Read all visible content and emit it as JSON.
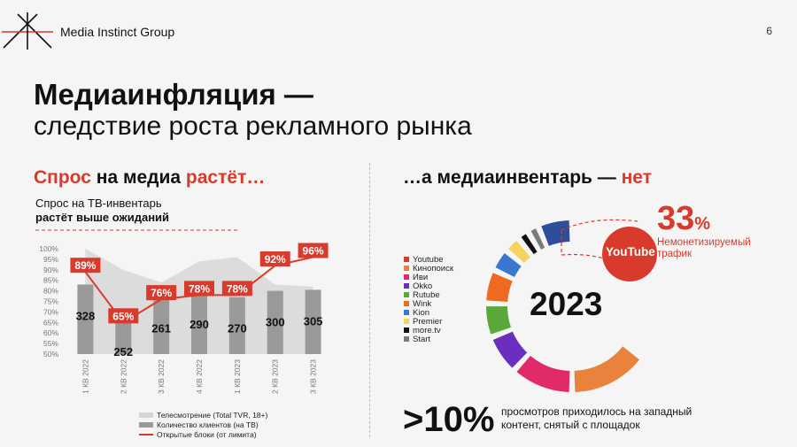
{
  "header": {
    "company": "Media Instinct Group",
    "page_number": "6"
  },
  "title": {
    "line1": "Медиаинфляция —",
    "line2": "следствие роста рекламного рынка"
  },
  "left": {
    "heading_a": "Спрос",
    "heading_b": " на медиа ",
    "heading_c": "растёт…",
    "subtitle1": "Спрос на ТВ-инвентарь",
    "subtitle2": "растёт выше ожиданий"
  },
  "right": {
    "heading_a": "…а медиаинвентарь — ",
    "heading_b": "нет",
    "year": "2023",
    "youtube_logo": "YouTube",
    "pct_value": "33",
    "pct_sign": "%",
    "pct_note": "Немонетизируемый трафик",
    "bottom_value": ">10%",
    "bottom_note": "просмотров приходилось на западный контент, снятый с площадок"
  },
  "colors": {
    "accent": "#d83a2c"
  },
  "chart_data": [
    {
      "type": "bar",
      "categories": [
        "1 КВ 2022",
        "2 КВ 2022",
        "3 КВ 2022",
        "4 КВ 2022",
        "1 КВ 2023",
        "2 КВ 2023",
        "3 КВ 2023"
      ],
      "y_ticks": [
        "100%",
        "95%",
        "90%",
        "85%",
        "80%",
        "75%",
        "70%",
        "65%",
        "60%",
        "55%",
        "50%"
      ],
      "ylim": [
        50,
        100
      ],
      "series": [
        {
          "name": "Телесмотрение (Total TVR, 18+)",
          "type": "area",
          "values": [
            100,
            90,
            84,
            94,
            96,
            83,
            82
          ]
        },
        {
          "name": "Количество клиентов (на ТВ)",
          "type": "bar",
          "values": [
            328,
            252,
            261,
            290,
            270,
            300,
            305
          ],
          "bar_height_pct": [
            83,
            66,
            77,
            79,
            77,
            80,
            80.5
          ]
        },
        {
          "name": "Открытые блоки (от лимита)",
          "type": "line",
          "values": [
            89,
            65,
            76,
            78,
            78,
            92,
            96
          ],
          "labels": [
            "89%",
            "65%",
            "76%",
            "78%",
            "78%",
            "92%",
            "96%"
          ]
        }
      ]
    },
    {
      "type": "pie",
      "title": "2023",
      "legend": [
        {
          "label": "Youtube",
          "color": "#d83a2c"
        },
        {
          "label": "Кинопоиск",
          "color": "#e8823d"
        },
        {
          "label": "Иви",
          "color": "#e02a6a"
        },
        {
          "label": "Okko",
          "color": "#6a2fbf"
        },
        {
          "label": "Rutube",
          "color": "#5aa83a"
        },
        {
          "label": "Wink",
          "color": "#ef6a20"
        },
        {
          "label": "Kion",
          "color": "#3a78d0"
        },
        {
          "label": "Premier",
          "color": "#f4d35e"
        },
        {
          "label": "more.tv",
          "color": "#111111"
        },
        {
          "label": "Start",
          "color": "#7a7a7a"
        }
      ],
      "values": [
        33,
        14,
        11,
        7,
        6,
        6,
        4,
        3,
        2,
        2,
        6
      ],
      "slice_colors": [
        "#d83a2c",
        "#e8823d",
        "#e02a6a",
        "#6a2fbf",
        "#5aa83a",
        "#ef6a20",
        "#3a78d0",
        "#f4d35e",
        "#111111",
        "#7a7a7a",
        "#2f4e9a"
      ]
    }
  ]
}
